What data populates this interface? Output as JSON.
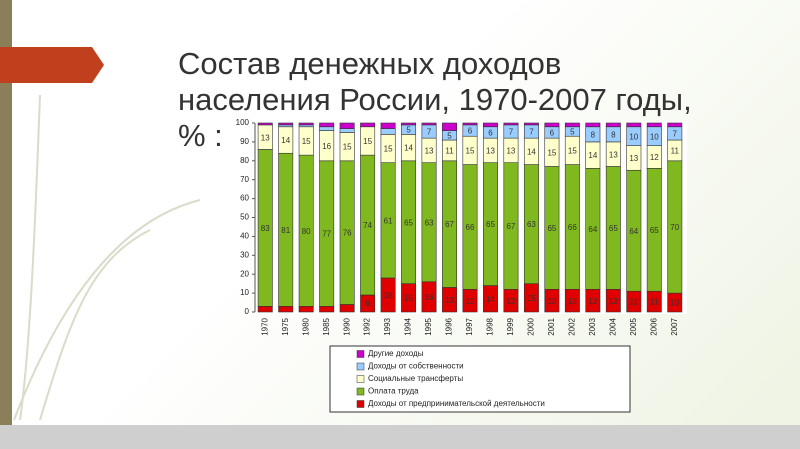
{
  "chart_data": {
    "type": "stacked-bar",
    "title": "Состав денежных доходов\nнаселения России, 1970-2007 годы,\n% :",
    "categories": [
      "1970",
      "1975",
      "1980",
      "1985",
      "1990",
      "1992",
      "1993",
      "1994",
      "1995",
      "1996",
      "1997",
      "1998",
      "1999",
      "2000",
      "2001",
      "2002",
      "2003",
      "2004",
      "2005",
      "2006",
      "2007"
    ],
    "series": [
      {
        "name": "Доходы от предпринимательской деятельности",
        "color": "#e00000",
        "values": [
          3,
          3,
          3,
          3,
          4,
          9,
          18,
          15,
          16,
          13,
          12,
          14,
          12,
          15,
          12,
          12,
          12,
          12,
          11,
          11,
          10
        ]
      },
      {
        "name": "Оплата труда",
        "color": "#80b820",
        "values": [
          83,
          81,
          80,
          77,
          76,
          74,
          61,
          65,
          63,
          67,
          66,
          65,
          67,
          63,
          65,
          66,
          64,
          65,
          64,
          65,
          70
        ]
      },
      {
        "name": "Социальные трансферты",
        "color": "#ffffcc",
        "values": [
          13,
          14,
          15,
          16,
          15,
          15,
          15,
          14,
          13,
          11,
          15,
          13,
          13,
          14,
          15,
          15,
          14,
          13,
          13,
          12,
          11
        ]
      },
      {
        "name": "Доходы от собственности",
        "color": "#99ccff",
        "values": [
          0,
          1,
          1,
          2,
          2,
          0,
          3,
          5,
          7,
          5,
          6,
          6,
          7,
          7,
          6,
          5,
          8,
          8,
          10,
          10,
          7
        ]
      },
      {
        "name": "Другие доходы",
        "color": "#cc00cc",
        "values": [
          1,
          1,
          1,
          2,
          3,
          2,
          3,
          1,
          1,
          4,
          1,
          2,
          1,
          1,
          2,
          2,
          2,
          2,
          2,
          2,
          2
        ]
      }
    ],
    "ylim": [
      0,
      100
    ],
    "yticks": [
      0,
      10,
      20,
      30,
      40,
      50,
      60,
      70,
      80,
      90,
      100
    ],
    "grid": false
  }
}
